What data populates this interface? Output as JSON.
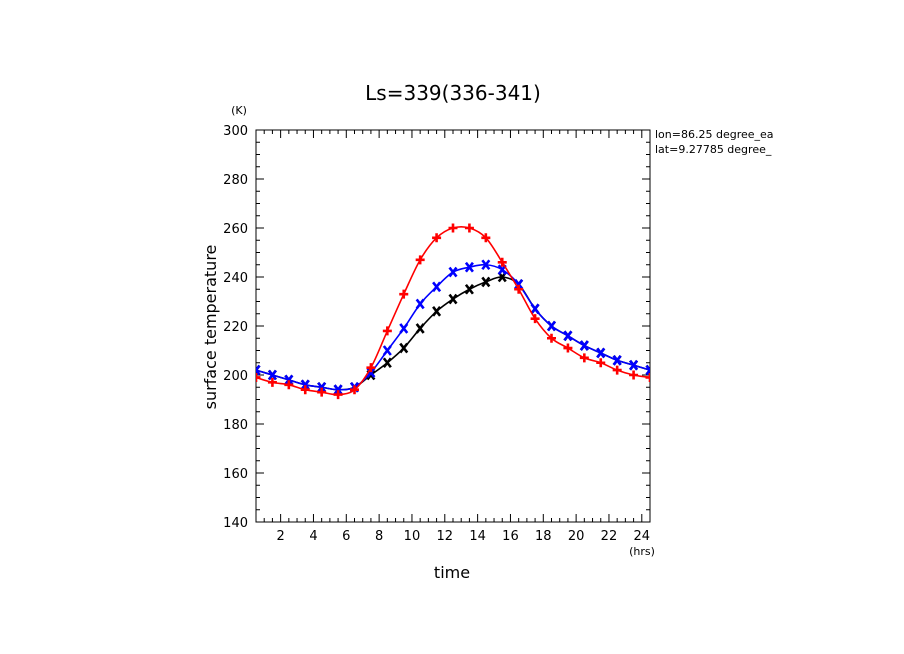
{
  "chart_data": {
    "type": "line",
    "title": "Ls=339(336-341)",
    "xlabel": "time",
    "ylabel": "surface temperature",
    "x_unit": "(hrs)",
    "y_unit": "(K)",
    "xlim": [
      0.5,
      24.5
    ],
    "ylim": [
      140,
      300
    ],
    "x_ticks": [
      2,
      4,
      6,
      8,
      10,
      12,
      14,
      16,
      18,
      20,
      22,
      24
    ],
    "y_ticks": [
      140,
      160,
      180,
      200,
      220,
      240,
      260,
      280,
      300
    ],
    "grid": false,
    "annotations": [
      "lon=86.25 degree_ea",
      "lat=9.27785 degree_"
    ],
    "x": [
      0.5,
      1.5,
      2.5,
      3.5,
      4.5,
      5.5,
      6.5,
      7.5,
      8.5,
      9.5,
      10.5,
      11.5,
      12.5,
      13.5,
      14.5,
      15.5,
      16.5,
      17.5,
      18.5,
      19.5,
      20.5,
      21.5,
      22.5,
      23.5,
      24.5
    ],
    "series": [
      {
        "color": "#000000",
        "marker": "x",
        "values": [
          202,
          200,
          198,
          196,
          195,
          194,
          195,
          200,
          205,
          211,
          219,
          226,
          231,
          235,
          238,
          240,
          237,
          227,
          220,
          216,
          212,
          209,
          206,
          204,
          202
        ]
      },
      {
        "color": "#0000ff",
        "marker": "x",
        "values": [
          202,
          200,
          198,
          196,
          195,
          194,
          195,
          201,
          210,
          219,
          229,
          236,
          242,
          244,
          245,
          243,
          237,
          227,
          220,
          216,
          212,
          209,
          206,
          204,
          202
        ]
      },
      {
        "color": "#ff0000",
        "marker": "+",
        "values": [
          199,
          197,
          196,
          194,
          193,
          192,
          194,
          203,
          218,
          233,
          247,
          256,
          260,
          260,
          256,
          246,
          235,
          223,
          215,
          211,
          207,
          205,
          202,
          200,
          199
        ]
      }
    ]
  }
}
